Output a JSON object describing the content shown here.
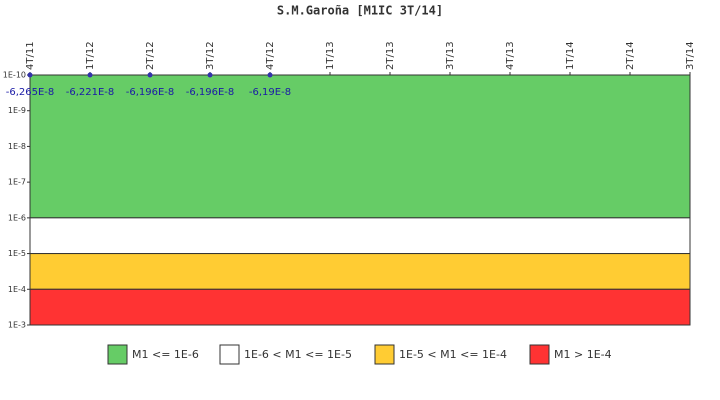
{
  "chart_data": {
    "type": "scatter",
    "title": "S.M.Garoña [M1IC 3T/14]",
    "categories": [
      "4T/11",
      "1T/12",
      "2T/12",
      "3T/12",
      "4T/12",
      "1T/13",
      "2T/13",
      "3T/13",
      "4T/13",
      "1T/14",
      "2T/14",
      "3T/14"
    ],
    "series": [
      {
        "name": "M1IC",
        "color": "#3333aa",
        "values": [
          -6.265e-08,
          -6.221e-08,
          -6.196e-08,
          -6.196e-08,
          -6.19e-08,
          null,
          null,
          null,
          null,
          null,
          null,
          null
        ],
        "value_labels": [
          "-6,265E-8",
          "-6,221E-8",
          "-6,196E-8",
          "-6,196E-8",
          "-6,19E-8",
          null,
          null,
          null,
          null,
          null,
          null,
          null
        ]
      }
    ],
    "zones": [
      {
        "name": "M1 <= 1E-6",
        "color": "#66cc66",
        "from": 1e-10,
        "to": 1e-06
      },
      {
        "name": "1E-6 < M1 <= 1E-5",
        "color": "#ffffff",
        "from": 1e-06,
        "to": 1e-05
      },
      {
        "name": "1E-5 < M1 <= 1E-4",
        "color": "#ffcc33",
        "from": 1e-05,
        "to": 0.0001
      },
      {
        "name": "M1 > 1E-4",
        "color": "#ff3333",
        "from": 0.0001,
        "to": 0.001
      }
    ],
    "ylim": [
      1e-10,
      0.001
    ],
    "y_log_scale": true,
    "y_inverted": true,
    "yticks": [
      {
        "value": 1e-10,
        "label": "1E-10"
      },
      {
        "value": 1e-09,
        "label": "1E-9"
      },
      {
        "value": 1e-08,
        "label": "1E-8"
      },
      {
        "value": 1e-07,
        "label": "1E-7"
      },
      {
        "value": 1e-06,
        "label": "1E-6"
      },
      {
        "value": 1e-05,
        "label": "1E-5"
      },
      {
        "value": 0.0001,
        "label": "1E-4"
      },
      {
        "value": 0.001,
        "label": "1E-3"
      }
    ],
    "legend_position": "bottom"
  }
}
